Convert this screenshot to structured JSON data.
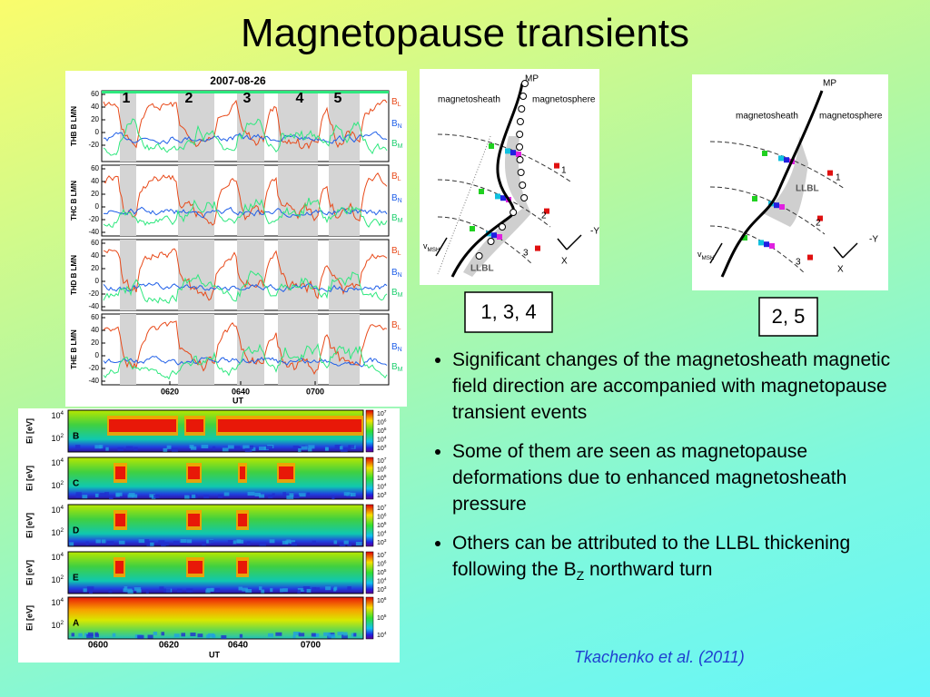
{
  "title": "Magnetopause transients",
  "field_figure": {
    "date": "2007-08-26",
    "events": [
      "1",
      "2",
      "3",
      "4",
      "5"
    ],
    "panels": [
      {
        "label": "THB B LMN",
        "yticks": [
          "60",
          "40",
          "20",
          "0",
          "-20"
        ]
      },
      {
        "label": "THC B LMN",
        "yticks": [
          "60",
          "40",
          "20",
          "0",
          "-20",
          "-40"
        ]
      },
      {
        "label": "THD B LMN",
        "yticks": [
          "60",
          "40",
          "20",
          "0",
          "-20",
          "-40"
        ]
      },
      {
        "label": "THE B LMN",
        "yticks": [
          "60",
          "40",
          "20",
          "0",
          "-20",
          "-40"
        ]
      }
    ],
    "components": [
      {
        "main": "B",
        "sub": "L"
      },
      {
        "main": "B",
        "sub": "N"
      },
      {
        "main": "B",
        "sub": "M"
      }
    ],
    "xticks": [
      "0620",
      "0640",
      "0700"
    ],
    "xlabel": "UT"
  },
  "spectrogram": {
    "ylabel": "Ei [eV]",
    "panels": [
      {
        "label": "B",
        "colorbar": [
          "7",
          "6",
          "5",
          "4",
          "3"
        ]
      },
      {
        "label": "C",
        "colorbar": [
          "7",
          "6",
          "5",
          "4",
          "3"
        ]
      },
      {
        "label": "D",
        "colorbar": [
          "7",
          "6",
          "5",
          "4",
          "3"
        ]
      },
      {
        "label": "E",
        "colorbar": [
          "7",
          "6",
          "5",
          "4",
          "3"
        ]
      },
      {
        "label": "A",
        "colorbar": [
          "6",
          "5",
          "4"
        ]
      }
    ],
    "ybase": "10",
    "yexps": [
      "4",
      "2"
    ],
    "xticks": [
      "0600",
      "0620",
      "0640",
      "0700"
    ],
    "xlabel": "UT"
  },
  "diagrams": [
    {
      "mp": "MP",
      "sheath": "magnetosheath",
      "sphere": "magnetosphere",
      "llbl": "LLBL",
      "v": "v",
      "vsub": "MSH",
      "lines": [
        "1",
        "2",
        "3"
      ],
      "y": "-Y",
      "x": "X",
      "caption": "1, 3, 4"
    },
    {
      "mp": "MP",
      "sheath": "magnetosheath",
      "sphere": "magnetosphere",
      "llbl": "LLBL",
      "v": "v",
      "vsub": "MSH",
      "lines": [
        "1",
        "2",
        "3"
      ],
      "y": "-Y",
      "x": "X",
      "caption": "2, 5"
    }
  ],
  "bullets": [
    [
      {
        "text": "Significant changes of the magnetosheath magnetic field direction are accompanied with magnetopause transient events"
      }
    ],
    [
      {
        "text": "Some of them are seen as magnetopause deformations due to enhanced magnetosheath pressure"
      }
    ],
    [
      {
        "text": "Others can be attributed to the LLBL thickening following the B"
      },
      {
        "sub": "Z"
      },
      {
        "text": " northward turn"
      }
    ]
  ],
  "citation": "Tkachenko et al. (2011)"
}
